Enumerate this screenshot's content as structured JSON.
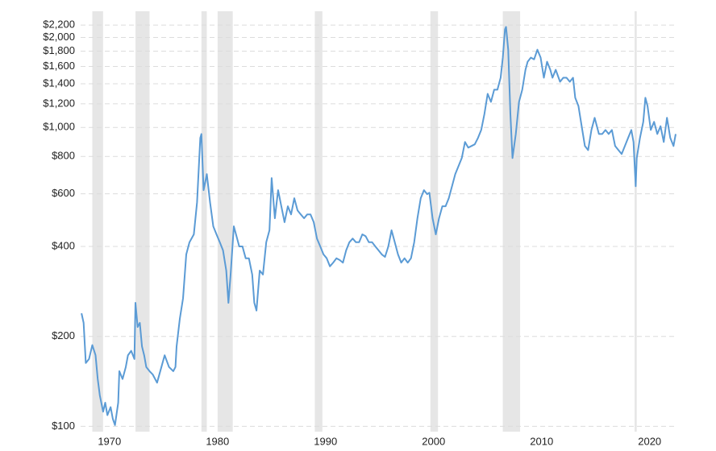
{
  "chart_data": {
    "type": "line",
    "color": "#5b9bd5",
    "shade_color": "#e6e6e6",
    "log_y": true,
    "grid": true,
    "xlim": [
      1968,
      2024.5
    ],
    "ylim": [
      96,
      2300
    ],
    "xticks": [
      1970,
      1980,
      1990,
      2000,
      2010,
      2020
    ],
    "yticks": [
      {
        "value": 100,
        "label": "$100"
      },
      {
        "value": 200,
        "label": "$200"
      },
      {
        "value": 400,
        "label": "$400"
      },
      {
        "value": 600,
        "label": "$600"
      },
      {
        "value": 800,
        "label": "$800"
      },
      {
        "value": 1000,
        "label": "$1,000"
      },
      {
        "value": 1200,
        "label": "$1,200"
      },
      {
        "value": 1400,
        "label": "$1,400"
      },
      {
        "value": 1600,
        "label": "$1,600"
      },
      {
        "value": 1800,
        "label": "$1,800"
      },
      {
        "value": 2000,
        "label": "$2,000"
      },
      {
        "value": 2200,
        "label": "$2,200"
      }
    ],
    "shaded_ranges": [
      [
        1969.9,
        1970.9
      ],
      [
        1973.9,
        1975.2
      ],
      [
        1980.0,
        1980.5
      ],
      [
        1981.5,
        1982.9
      ],
      [
        1990.5,
        1991.2
      ],
      [
        2001.2,
        2001.9
      ],
      [
        2007.9,
        2009.5
      ],
      [
        2020.1,
        2020.3
      ]
    ],
    "x": [
      1968.9,
      1969.1,
      1969.3,
      1969.6,
      1969.9,
      1970.2,
      1970.4,
      1970.6,
      1970.9,
      1971.1,
      1971.3,
      1971.6,
      1971.8,
      1972.0,
      1972.3,
      1972.4,
      1972.7,
      1973.0,
      1973.2,
      1973.5,
      1973.8,
      1973.9,
      1974.1,
      1974.3,
      1974.5,
      1974.7,
      1974.9,
      1975.2,
      1975.5,
      1975.9,
      1976.3,
      1976.6,
      1977.0,
      1977.4,
      1977.6,
      1977.7,
      1978.0,
      1978.3,
      1978.6,
      1978.9,
      1979.3,
      1979.6,
      1979.9,
      1980.0,
      1980.2,
      1980.5,
      1980.8,
      1981.1,
      1981.4,
      1981.7,
      1982.0,
      1982.3,
      1982.5,
      1982.7,
      1983.0,
      1983.2,
      1983.5,
      1983.8,
      1984.1,
      1984.4,
      1984.7,
      1984.9,
      1985.1,
      1985.4,
      1985.7,
      1986.0,
      1986.3,
      1986.5,
      1986.8,
      1987.1,
      1987.4,
      1987.7,
      1988.0,
      1988.3,
      1988.6,
      1988.9,
      1989.2,
      1989.5,
      1989.8,
      1990.1,
      1990.4,
      1990.7,
      1991.0,
      1991.3,
      1991.6,
      1991.9,
      1992.2,
      1992.5,
      1992.8,
      1993.1,
      1993.4,
      1993.7,
      1994.0,
      1994.3,
      1994.6,
      1994.9,
      1995.2,
      1995.5,
      1995.8,
      1996.1,
      1996.4,
      1996.7,
      1997.0,
      1997.3,
      1997.6,
      1997.9,
      1998.2,
      1998.5,
      1998.8,
      1999.1,
      1999.4,
      1999.7,
      2000.0,
      2000.3,
      2000.6,
      2000.9,
      2001.1,
      2001.4,
      2001.7,
      2002.0,
      2002.3,
      2002.6,
      2002.9,
      2003.2,
      2003.5,
      2003.8,
      2004.1,
      2004.4,
      2004.7,
      2005.0,
      2005.3,
      2005.6,
      2005.9,
      2006.2,
      2006.5,
      2006.8,
      2007.1,
      2007.4,
      2007.7,
      2007.9,
      2008.1,
      2008.2,
      2008.4,
      2008.6,
      2008.8,
      2009.1,
      2009.4,
      2009.7,
      2010.0,
      2010.2,
      2010.5,
      2010.8,
      2011.1,
      2011.4,
      2011.7,
      2012.0,
      2012.3,
      2012.5,
      2012.8,
      2013.2,
      2013.5,
      2013.8,
      2014.1,
      2014.4,
      2014.6,
      2014.9,
      2015.2,
      2015.5,
      2015.8,
      2016.1,
      2016.4,
      2016.8,
      2017.1,
      2017.4,
      2017.7,
      2018.0,
      2018.3,
      2018.6,
      2018.9,
      2019.2,
      2019.5,
      2019.8,
      2020.0,
      2020.2,
      2020.3,
      2020.6,
      2020.9,
      2021.1,
      2021.3,
      2021.6,
      2021.9,
      2022.2,
      2022.5,
      2022.8,
      2023.1,
      2023.4,
      2023.7,
      2023.9
    ],
    "values": [
      239,
      222,
      163,
      168,
      187,
      173,
      144,
      127,
      112,
      120,
      109,
      116,
      106,
      101,
      120,
      153,
      144,
      158,
      173,
      179,
      168,
      259,
      215,
      222,
      185,
      173,
      158,
      153,
      149,
      140,
      158,
      173,
      158,
      153,
      158,
      185,
      229,
      268,
      376,
      413,
      439,
      562,
      922,
      951,
      617,
      698,
      562,
      467,
      439,
      413,
      388,
      332,
      259,
      322,
      467,
      439,
      400,
      400,
      365,
      365,
      322,
      259,
      244,
      332,
      322,
      413,
      453,
      677,
      497,
      617,
      545,
      482,
      545,
      512,
      580,
      528,
      512,
      497,
      512,
      512,
      482,
      425,
      400,
      376,
      365,
      343,
      353,
      365,
      360,
      353,
      388,
      413,
      425,
      413,
      413,
      439,
      433,
      413,
      413,
      400,
      388,
      376,
      369,
      400,
      453,
      413,
      376,
      353,
      365,
      353,
      365,
      413,
      497,
      580,
      617,
      598,
      605,
      497,
      439,
      497,
      545,
      545,
      580,
      636,
      698,
      743,
      790,
      894,
      856,
      867,
      878,
      922,
      981,
      1110,
      1296,
      1218,
      1337,
      1337,
      1467,
      1713,
      2130,
      2170,
      1820,
      1110,
      790,
      951,
      1218,
      1337,
      1560,
      1660,
      1713,
      1690,
      1820,
      1713,
      1467,
      1660,
      1560,
      1467,
      1560,
      1422,
      1467,
      1467,
      1422,
      1467,
      1257,
      1180,
      1010,
      867,
      840,
      981,
      1077,
      951,
      951,
      981,
      951,
      981,
      867,
      840,
      815,
      867,
      922,
      981,
      894,
      636,
      790,
      922,
      1044,
      1257,
      1180,
      981,
      1044,
      951,
      1010,
      894,
      1077,
      922,
      867,
      951
    ]
  }
}
